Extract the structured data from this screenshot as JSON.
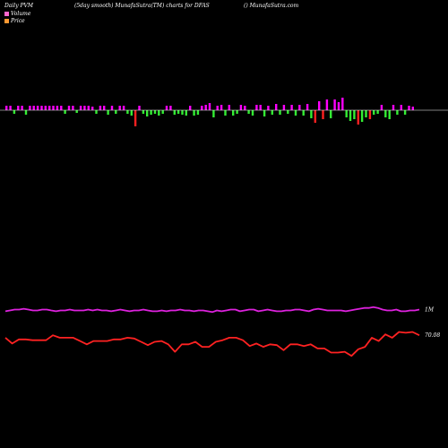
{
  "header": {
    "left": "Daily PVM",
    "middle": "(5day smooth) MunafaSutra(TM) charts for DFAS",
    "right": "() MunafaSutra.com"
  },
  "legend": {
    "volume_label": "Volume",
    "price_label": "Price",
    "volume_color": "#ff66cc",
    "price_color": "#ff9933"
  },
  "chart_data": [
    {
      "type": "bar",
      "title": "",
      "colors": {
        "up": "#ff00ff",
        "down": "#ff2020",
        "neutral": "#33ee33"
      },
      "volume": [
        5,
        5,
        -4,
        5,
        5,
        -5,
        5,
        5,
        5,
        5,
        5,
        5,
        5,
        5,
        5,
        -4,
        5,
        5,
        -3,
        5,
        5,
        5,
        4,
        -4,
        5,
        5,
        -5,
        5,
        -4,
        5,
        5,
        -4,
        -6,
        -18,
        5,
        -4,
        -7,
        -5,
        -4,
        -6,
        -4,
        5,
        5,
        -5,
        -4,
        -5,
        -6,
        5,
        -6,
        -5,
        5,
        6,
        8,
        -8,
        5,
        6,
        -6,
        6,
        -6,
        -4,
        6,
        5,
        -4,
        -6,
        6,
        6,
        -7,
        5,
        -5,
        7,
        -5,
        6,
        -4,
        6,
        -6,
        6,
        -6,
        7,
        -9,
        -14,
        10,
        -10,
        12,
        -9,
        12,
        9,
        14,
        -8,
        -12,
        -10,
        -16,
        -13,
        -8,
        -10,
        -5,
        -4,
        6,
        -8,
        -10,
        6,
        -5,
        6,
        -5,
        5,
        4
      ]
    },
    {
      "type": "line",
      "title": "",
      "series": [
        {
          "name": "",
          "color": "#dd22dd",
          "end_label": "1M",
          "values": [
            72,
            73,
            74,
            74,
            75,
            74,
            73,
            73,
            74,
            74,
            73,
            72,
            73,
            73,
            74,
            73,
            73,
            73,
            74,
            73,
            74,
            73,
            73,
            72,
            73,
            74,
            73,
            72,
            73,
            73,
            74,
            73,
            72,
            72,
            73,
            72,
            73,
            73,
            74,
            73,
            73,
            72,
            73,
            73,
            72,
            71,
            73,
            72,
            73,
            74,
            74,
            72,
            73,
            74,
            74,
            72,
            73,
            74,
            73,
            72,
            72,
            73,
            73,
            74,
            74,
            73,
            72,
            74,
            75,
            74,
            73,
            73,
            73,
            73,
            72,
            73,
            74,
            75,
            76,
            76,
            77,
            76,
            74,
            73,
            73,
            74,
            72,
            72,
            73,
            73,
            74
          ]
        },
        {
          "name": "",
          "color": "#ff2222",
          "end_label": "70.08",
          "values": [
            40,
            33,
            38,
            38,
            37,
            37,
            37,
            43,
            40,
            40,
            40,
            36,
            32,
            36,
            36,
            36,
            38,
            38,
            40,
            39,
            35,
            31,
            35,
            36,
            32,
            23,
            32,
            32,
            35,
            29,
            29,
            35,
            37,
            40,
            40,
            37,
            30,
            33,
            29,
            32,
            31,
            25,
            32,
            32,
            30,
            32,
            27,
            27,
            22,
            22,
            23,
            18,
            26,
            29,
            40,
            36,
            44,
            40,
            47,
            46,
            47,
            43
          ]
        }
      ]
    }
  ]
}
